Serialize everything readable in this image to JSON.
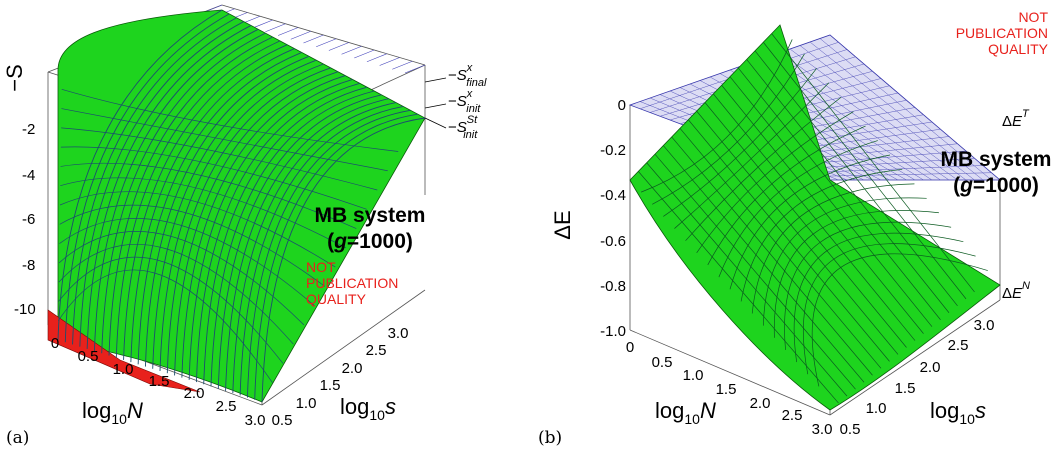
{
  "panels": [
    {
      "label": "(a)",
      "watermark": [
        "NOT",
        "PUBLICATION",
        "QUALITY"
      ],
      "system": {
        "line1": "MB system",
        "line2_pre": "(",
        "line2_var": "g",
        "line2_post": "=1000)"
      },
      "z_label": "−S",
      "z_ticks": [
        "-2",
        "-4",
        "-6",
        "-8",
        "-10"
      ],
      "x_label": {
        "base": "log",
        "sub": "10",
        "var": "N"
      },
      "x_ticks": [
        "0",
        "0.5",
        "1.0",
        "1.5",
        "2.0",
        "2.5",
        "3.0"
      ],
      "y_label": {
        "base": "log",
        "sub": "10",
        "var": "s"
      },
      "y_ticks": [
        "0.5",
        "1.0",
        "1.5",
        "2.0",
        "2.5",
        "3.0"
      ],
      "surface_labels": [
        {
          "sign": "−",
          "var": "S",
          "sup": "x",
          "sub": "final"
        },
        {
          "sign": "−",
          "var": "S",
          "sup": "x",
          "sub": "init"
        },
        {
          "sign": "−",
          "var": "S",
          "sup": "St",
          "sub": "init"
        }
      ]
    },
    {
      "label": "(b)",
      "watermark": [
        "NOT",
        "PUBLICATION",
        "QUALITY"
      ],
      "system": {
        "line1": "MB system",
        "line2_pre": "(",
        "line2_var": "g",
        "line2_post": "=1000)"
      },
      "z_label": "ΔE",
      "z_ticks": [
        "0",
        "-0.2",
        "-0.4",
        "-0.6",
        "-0.8",
        "-1.0"
      ],
      "x_label": {
        "base": "log",
        "sub": "10",
        "var": "N"
      },
      "x_ticks": [
        "0",
        "0.5",
        "1.0",
        "1.5",
        "2.0",
        "2.5",
        "3.0"
      ],
      "y_label": {
        "base": "log",
        "sub": "10",
        "var": "s"
      },
      "y_ticks": [
        "0.5",
        "1.0",
        "1.5",
        "2.0",
        "2.5",
        "3.0"
      ],
      "surface_labels": [
        {
          "pre": "Δ",
          "var": "E",
          "sup": "T"
        },
        {
          "pre": "Δ",
          "var": "E",
          "sup": "N"
        }
      ]
    }
  ],
  "chart_data": [
    {
      "type": "surface",
      "xlabel": "log10 N",
      "ylabel": "log10 s",
      "zlabel": "−S",
      "xlim": [
        0,
        3
      ],
      "ylim": [
        0.5,
        3
      ],
      "zlim": [
        -11,
        -1
      ],
      "series": [
        {
          "name": "−S^x_final",
          "color": "#22cc22",
          "description_x_dependence": "rises steeply with log10 N"
        },
        {
          "name": "−S^x_init",
          "color": "#2222cc"
        },
        {
          "name": "−S^St_init",
          "color": "#e8211c"
        }
      ],
      "corner_values": [
        {
          "log10N": 0,
          "log10s": 0.5,
          "value": -11
        },
        {
          "log10N": 3,
          "log10s": 0.5,
          "value": -11
        },
        {
          "log10N": 0,
          "log10s": 3,
          "value": -1.2
        },
        {
          "log10N": 3,
          "log10s": 3,
          "value": -1.2
        }
      ]
    },
    {
      "type": "surface",
      "xlabel": "log10 N",
      "ylabel": "log10 s",
      "zlabel": "ΔE",
      "xlim": [
        0,
        3
      ],
      "ylim": [
        0.5,
        3
      ],
      "zlim": [
        -1,
        0
      ],
      "series": [
        {
          "name": "ΔE^T",
          "color": "#2222cc",
          "constant": 0
        },
        {
          "name": "ΔE^N",
          "color": "#22cc22"
        }
      ],
      "corner_values": [
        {
          "log10N": 0,
          "log10s": 0.5,
          "value": -0.35
        },
        {
          "log10N": 3,
          "log10s": 0.5,
          "value": -1.0
        },
        {
          "log10N": 0,
          "log10s": 3,
          "value": 0
        },
        {
          "log10N": 3,
          "log10s": 3,
          "value": -0.8
        }
      ]
    }
  ]
}
